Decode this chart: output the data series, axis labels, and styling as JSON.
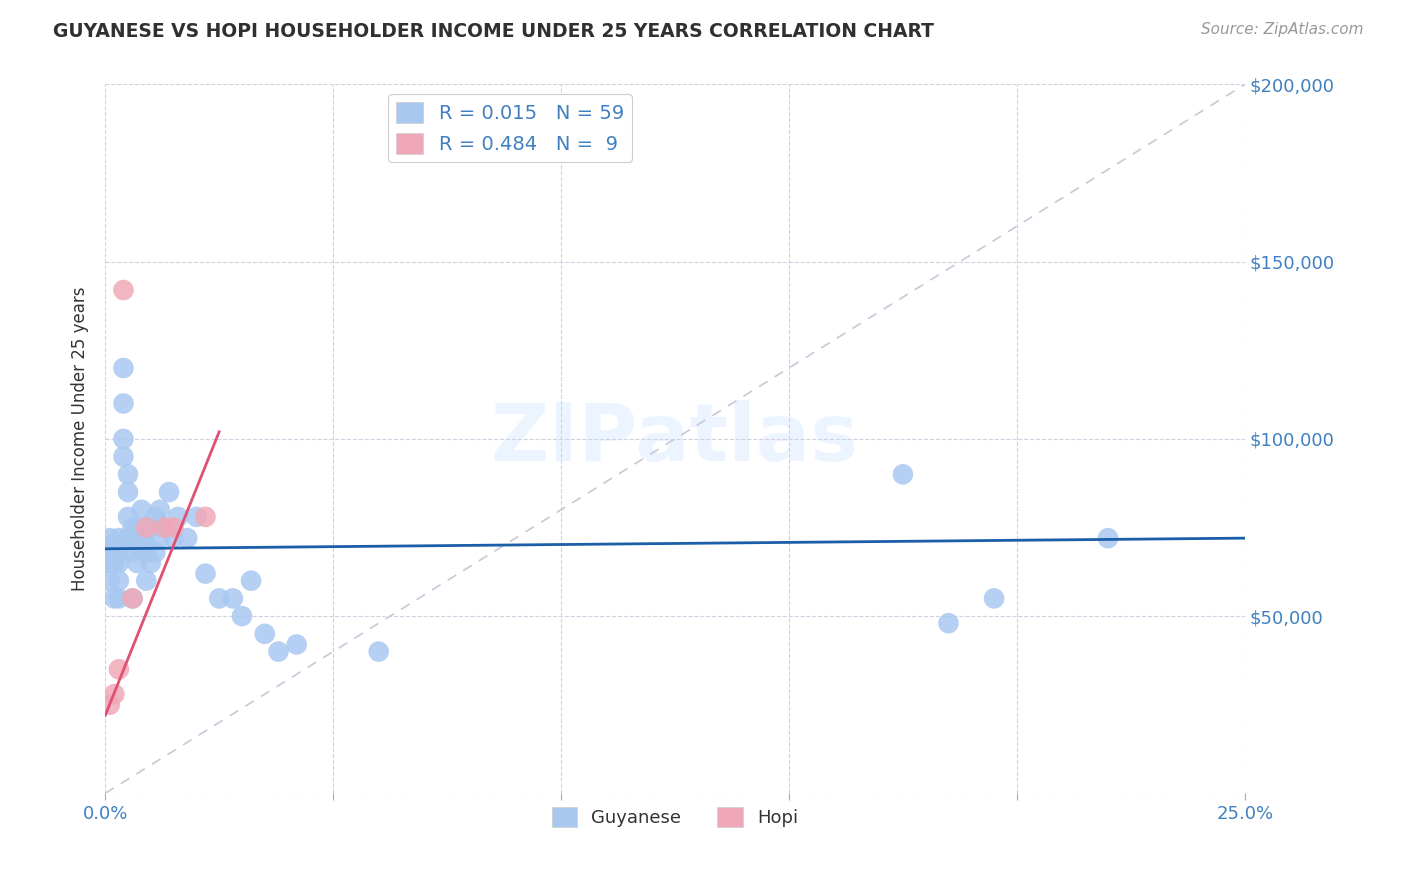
{
  "title": "GUYANESE VS HOPI HOUSEHOLDER INCOME UNDER 25 YEARS CORRELATION CHART",
  "source": "Source: ZipAtlas.com",
  "ylabel_label": "Householder Income Under 25 years",
  "x_min": 0.0,
  "x_max": 0.25,
  "y_min": 0,
  "y_max": 200000,
  "x_ticks": [
    0.0,
    0.05,
    0.1,
    0.15,
    0.2,
    0.25
  ],
  "x_tick_labels": [
    "0.0%",
    "",
    "",
    "",
    "",
    "25.0%"
  ],
  "y_ticks": [
    0,
    50000,
    100000,
    150000,
    200000
  ],
  "y_tick_labels": [
    "",
    "$50,000",
    "$100,000",
    "$150,000",
    "$200,000"
  ],
  "watermark": "ZIPatlas",
  "color_guyanese": "#a8c8f0",
  "color_hopi": "#f0a8b8",
  "color_guyanese_line": "#1a5fa8",
  "color_hopi_line": "#e05070",
  "color_diag_line": "#c8c8d8",
  "color_title": "#303030",
  "color_axis_labels": "#4080c0",
  "background": "#ffffff",
  "guyanese_x": [
    0.001,
    0.001,
    0.001,
    0.001,
    0.001,
    0.002,
    0.002,
    0.002,
    0.002,
    0.003,
    0.003,
    0.003,
    0.003,
    0.003,
    0.004,
    0.004,
    0.004,
    0.004,
    0.005,
    0.005,
    0.005,
    0.005,
    0.006,
    0.006,
    0.006,
    0.006,
    0.007,
    0.007,
    0.007,
    0.008,
    0.008,
    0.009,
    0.009,
    0.009,
    0.01,
    0.01,
    0.011,
    0.011,
    0.012,
    0.012,
    0.013,
    0.014,
    0.015,
    0.016,
    0.018,
    0.02,
    0.022,
    0.025,
    0.028,
    0.03,
    0.032,
    0.035,
    0.038,
    0.042,
    0.06,
    0.175,
    0.185,
    0.195,
    0.22
  ],
  "guyanese_y": [
    68000,
    70000,
    72000,
    65000,
    60000,
    70000,
    68000,
    65000,
    55000,
    72000,
    68000,
    65000,
    60000,
    55000,
    120000,
    110000,
    100000,
    95000,
    90000,
    85000,
    78000,
    72000,
    75000,
    72000,
    68000,
    55000,
    75000,
    70000,
    65000,
    80000,
    72000,
    70000,
    68000,
    60000,
    75000,
    65000,
    78000,
    68000,
    80000,
    72000,
    75000,
    85000,
    72000,
    78000,
    72000,
    78000,
    62000,
    55000,
    55000,
    50000,
    60000,
    45000,
    40000,
    42000,
    40000,
    90000,
    48000,
    55000,
    72000
  ],
  "hopi_x": [
    0.001,
    0.002,
    0.003,
    0.004,
    0.006,
    0.009,
    0.013,
    0.015,
    0.022
  ],
  "hopi_y": [
    25000,
    28000,
    35000,
    142000,
    55000,
    75000,
    75000,
    75000,
    78000
  ],
  "guyanese_line_x": [
    0.0,
    0.25
  ],
  "guyanese_line_y": [
    69000,
    72000
  ],
  "hopi_line_x": [
    0.0,
    0.025
  ],
  "hopi_line_y": [
    22000,
    102000
  ],
  "diag_line_x": [
    0.0,
    0.25
  ],
  "diag_line_y": [
    0,
    200000
  ]
}
